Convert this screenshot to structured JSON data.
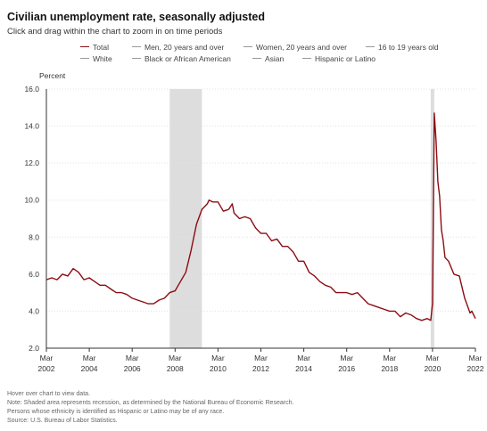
{
  "title": "Civilian unemployment rate, seasonally adjusted",
  "subtitle": "Click and drag within the chart to zoom in on time periods",
  "legend": {
    "row1": [
      {
        "label": "Total",
        "color": "#8b0d13"
      },
      {
        "label": "Men, 20 years and over",
        "color": "#999999"
      },
      {
        "label": "Women, 20 years and over",
        "color": "#999999"
      },
      {
        "label": "16 to 19 years old",
        "color": "#999999"
      }
    ],
    "row2": [
      {
        "label": "White",
        "color": "#999999"
      },
      {
        "label": "Black or African American",
        "color": "#999999"
      },
      {
        "label": "Asian",
        "color": "#999999"
      },
      {
        "label": "Hispanic or Latino",
        "color": "#999999"
      }
    ]
  },
  "notes": {
    "hover": "Hover over chart to view data.",
    "recession": "Note: Shaded area represents recession, as determined by the National Bureau of Economic Research.",
    "ethnicity": "Persons whose ethnicity is identified as Hispanic or Latino may be of any race.",
    "source": "Source: U.S. Bureau of Labor Statistics."
  },
  "chart_data": {
    "type": "line",
    "title": "Civilian unemployment rate, seasonally adjusted",
    "ylabel": "Percent",
    "ylim": [
      2.0,
      16.0
    ],
    "yticks": [
      "2.0",
      "4.0",
      "6.0",
      "8.0",
      "10.0",
      "12.0",
      "14.0",
      "16.0"
    ],
    "xlim": [
      "2002-03",
      "2022-03"
    ],
    "xticks": [
      {
        "month": "Mar",
        "year": "2002"
      },
      {
        "month": "Mar",
        "year": "2004"
      },
      {
        "month": "Mar",
        "year": "2006"
      },
      {
        "month": "Mar",
        "year": "2008"
      },
      {
        "month": "Mar",
        "year": "2010"
      },
      {
        "month": "Mar",
        "year": "2012"
      },
      {
        "month": "Mar",
        "year": "2014"
      },
      {
        "month": "Mar",
        "year": "2016"
      },
      {
        "month": "Mar",
        "year": "2018"
      },
      {
        "month": "Mar",
        "year": "2020"
      },
      {
        "month": "Mar",
        "year": "2022"
      }
    ],
    "grid": true,
    "recessions": [
      [
        "2007-12",
        "2009-06"
      ],
      [
        "2020-02",
        "2020-04"
      ]
    ],
    "series": [
      {
        "name": "Total",
        "color": "#8b0d13",
        "points": [
          [
            "2002-03",
            5.7
          ],
          [
            "2002-06",
            5.8
          ],
          [
            "2002-09",
            5.7
          ],
          [
            "2002-12",
            6.0
          ],
          [
            "2003-03",
            5.9
          ],
          [
            "2003-06",
            6.3
          ],
          [
            "2003-09",
            6.1
          ],
          [
            "2003-12",
            5.7
          ],
          [
            "2004-03",
            5.8
          ],
          [
            "2004-06",
            5.6
          ],
          [
            "2004-09",
            5.4
          ],
          [
            "2004-12",
            5.4
          ],
          [
            "2005-03",
            5.2
          ],
          [
            "2005-06",
            5.0
          ],
          [
            "2005-09",
            5.0
          ],
          [
            "2005-12",
            4.9
          ],
          [
            "2006-03",
            4.7
          ],
          [
            "2006-06",
            4.6
          ],
          [
            "2006-09",
            4.5
          ],
          [
            "2006-12",
            4.4
          ],
          [
            "2007-03",
            4.4
          ],
          [
            "2007-06",
            4.6
          ],
          [
            "2007-09",
            4.7
          ],
          [
            "2007-12",
            5.0
          ],
          [
            "2008-03",
            5.1
          ],
          [
            "2008-06",
            5.6
          ],
          [
            "2008-09",
            6.1
          ],
          [
            "2008-12",
            7.3
          ],
          [
            "2009-03",
            8.7
          ],
          [
            "2009-06",
            9.5
          ],
          [
            "2009-09",
            9.8
          ],
          [
            "2009-10",
            10.0
          ],
          [
            "2009-12",
            9.9
          ],
          [
            "2010-03",
            9.9
          ],
          [
            "2010-06",
            9.4
          ],
          [
            "2010-09",
            9.5
          ],
          [
            "2010-11",
            9.8
          ],
          [
            "2010-12",
            9.3
          ],
          [
            "2011-03",
            9.0
          ],
          [
            "2011-06",
            9.1
          ],
          [
            "2011-09",
            9.0
          ],
          [
            "2011-12",
            8.5
          ],
          [
            "2012-03",
            8.2
          ],
          [
            "2012-06",
            8.2
          ],
          [
            "2012-09",
            7.8
          ],
          [
            "2012-12",
            7.9
          ],
          [
            "2013-03",
            7.5
          ],
          [
            "2013-06",
            7.5
          ],
          [
            "2013-09",
            7.2
          ],
          [
            "2013-12",
            6.7
          ],
          [
            "2014-03",
            6.7
          ],
          [
            "2014-06",
            6.1
          ],
          [
            "2014-09",
            5.9
          ],
          [
            "2014-12",
            5.6
          ],
          [
            "2015-03",
            5.4
          ],
          [
            "2015-06",
            5.3
          ],
          [
            "2015-09",
            5.0
          ],
          [
            "2015-12",
            5.0
          ],
          [
            "2016-03",
            5.0
          ],
          [
            "2016-06",
            4.9
          ],
          [
            "2016-09",
            5.0
          ],
          [
            "2016-12",
            4.7
          ],
          [
            "2017-03",
            4.4
          ],
          [
            "2017-06",
            4.3
          ],
          [
            "2017-09",
            4.2
          ],
          [
            "2017-12",
            4.1
          ],
          [
            "2018-03",
            4.0
          ],
          [
            "2018-06",
            4.0
          ],
          [
            "2018-09",
            3.7
          ],
          [
            "2018-12",
            3.9
          ],
          [
            "2019-03",
            3.8
          ],
          [
            "2019-06",
            3.6
          ],
          [
            "2019-09",
            3.5
          ],
          [
            "2019-12",
            3.6
          ],
          [
            "2020-02",
            3.5
          ],
          [
            "2020-03",
            4.4
          ],
          [
            "2020-04",
            14.7
          ],
          [
            "2020-05",
            13.2
          ],
          [
            "2020-06",
            11.0
          ],
          [
            "2020-07",
            10.2
          ],
          [
            "2020-08",
            8.4
          ],
          [
            "2020-09",
            7.8
          ],
          [
            "2020-10",
            6.9
          ],
          [
            "2020-12",
            6.7
          ],
          [
            "2021-03",
            6.0
          ],
          [
            "2021-06",
            5.9
          ],
          [
            "2021-09",
            4.7
          ],
          [
            "2021-12",
            3.9
          ],
          [
            "2022-01",
            4.0
          ],
          [
            "2022-03",
            3.6
          ]
        ]
      }
    ]
  }
}
